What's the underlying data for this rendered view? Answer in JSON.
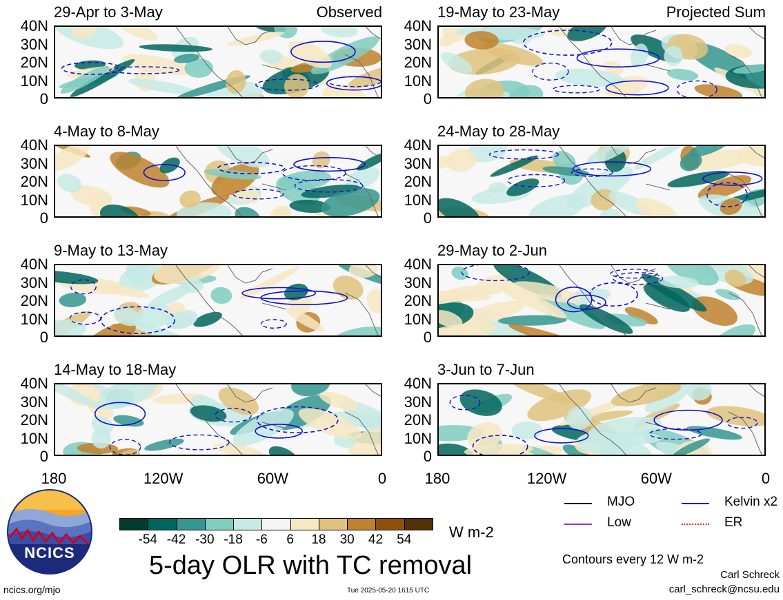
{
  "panels": [
    {
      "id": "p1",
      "title": "29-Apr to 3-May",
      "tag": "Observed",
      "col": 0,
      "row": 0
    },
    {
      "id": "p2",
      "title": "4-May to 8-May",
      "tag": "",
      "col": 0,
      "row": 1
    },
    {
      "id": "p3",
      "title": "9-May to 13-May",
      "tag": "",
      "col": 0,
      "row": 2
    },
    {
      "id": "p4",
      "title": "14-May to 18-May",
      "tag": "",
      "col": 0,
      "row": 3
    },
    {
      "id": "p5",
      "title": "19-May to 23-May",
      "tag": "Projected Sum",
      "col": 1,
      "row": 0
    },
    {
      "id": "p6",
      "title": "24-May to 28-May",
      "tag": "",
      "col": 1,
      "row": 1
    },
    {
      "id": "p7",
      "title": "29-May to 2-Jun",
      "tag": "",
      "col": 1,
      "row": 2
    },
    {
      "id": "p8",
      "title": "3-Jun to 7-Jun",
      "tag": "",
      "col": 1,
      "row": 3
    }
  ],
  "y_ticks": [
    "40N",
    "30N",
    "20N",
    "10N",
    "0"
  ],
  "x_ticks": [
    "180",
    "120W",
    "60W",
    "0"
  ],
  "colorbar": {
    "labels": [
      "-54",
      "-42",
      "-30",
      "-18",
      "-6",
      "6",
      "18",
      "30",
      "42",
      "54"
    ],
    "colors": [
      "#003c30",
      "#01665e",
      "#35978f",
      "#80cdc1",
      "#c7eae5",
      "#f5f5f5",
      "#f6e8c3",
      "#dfc27d",
      "#bf812d",
      "#8c510a",
      "#543005"
    ],
    "units": "W m-2"
  },
  "legend": {
    "items": [
      {
        "label": "MJO",
        "color": "#000000"
      },
      {
        "label": "Kelvin x2",
        "color": "#1010cc"
      },
      {
        "label": "Low",
        "color": "#9932cc"
      },
      {
        "label": "ER",
        "color": "#ff2a00"
      }
    ],
    "contour_note": "Contours every 12 W m-2"
  },
  "logo": {
    "text": "NCICS"
  },
  "main_title": "5-day OLR with TC removal",
  "footer": {
    "url": "ncics.org/mjo",
    "timestamp": "Tue 2025-05-20 1615 UTC",
    "author": "Carl Schreck",
    "email": "carl_schreck@ncsu.edu"
  }
}
